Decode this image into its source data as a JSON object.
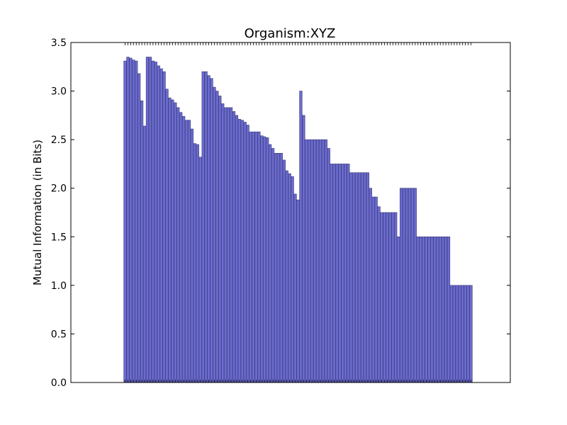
{
  "chart_data": {
    "type": "bar",
    "title": "Organism:XYZ",
    "xlabel": "",
    "ylabel": "Mutual Information (in Bits)",
    "ylim": [
      0,
      3.5
    ],
    "yticks": [
      "0.0",
      "0.5",
      "1.0",
      "1.5",
      "2.0",
      "2.5",
      "3.0",
      "3.5"
    ],
    "grid": false,
    "bar_color": "#6b6bcf",
    "bar_edge_color": "#3a3a7a",
    "values": [
      3.31,
      3.35,
      3.34,
      3.32,
      3.31,
      3.18,
      2.9,
      2.64,
      3.35,
      3.35,
      3.31,
      3.3,
      3.26,
      3.23,
      3.2,
      3.02,
      2.93,
      2.91,
      2.88,
      2.83,
      2.78,
      2.74,
      2.7,
      2.7,
      2.61,
      2.46,
      2.45,
      2.32,
      3.2,
      3.2,
      3.16,
      3.13,
      3.04,
      3.0,
      2.95,
      2.87,
      2.83,
      2.83,
      2.83,
      2.79,
      2.75,
      2.71,
      2.7,
      2.68,
      2.65,
      2.58,
      2.58,
      2.58,
      2.58,
      2.54,
      2.53,
      2.52,
      2.45,
      2.41,
      2.36,
      2.36,
      2.36,
      2.29,
      2.18,
      2.15,
      2.12,
      1.94,
      1.88,
      3.0,
      2.75,
      2.5,
      2.5,
      2.5,
      2.5,
      2.5,
      2.5,
      2.5,
      2.5,
      2.41,
      2.25,
      2.25,
      2.25,
      2.25,
      2.25,
      2.25,
      2.25,
      2.16,
      2.16,
      2.16,
      2.16,
      2.16,
      2.16,
      2.16,
      2.0,
      1.91,
      1.91,
      1.81,
      1.75,
      1.75,
      1.75,
      1.75,
      1.75,
      1.75,
      1.5,
      2.0,
      2.0,
      2.0,
      2.0,
      2.0,
      2.0,
      1.5,
      1.5,
      1.5,
      1.5,
      1.5,
      1.5,
      1.5,
      1.5,
      1.5,
      1.5,
      1.5,
      1.5,
      1.0,
      1.0,
      1.0,
      1.0,
      1.0,
      1.0,
      1.0,
      1.0
    ]
  }
}
